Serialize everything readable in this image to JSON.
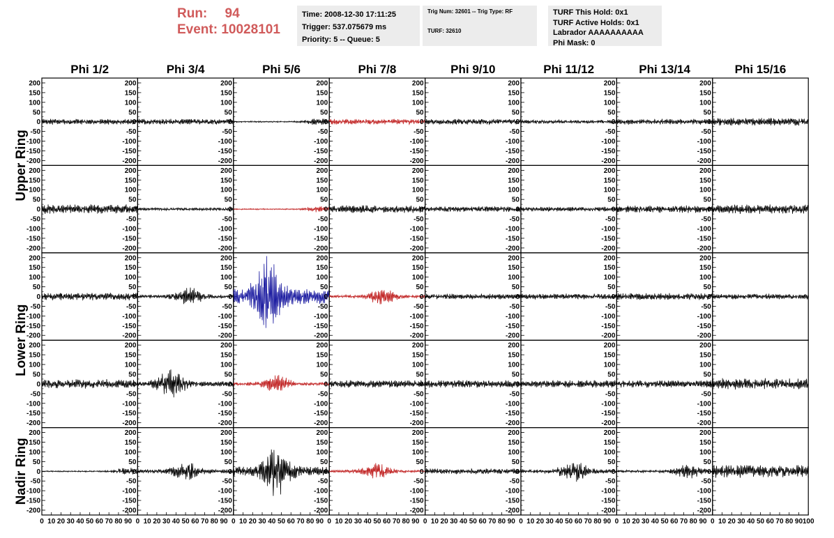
{
  "header": {
    "run_label": "Run:",
    "run_value": "94",
    "event_label": "Event:",
    "event_value": "10028101",
    "info1": [
      "Time: 2008-12-30 17:11:25",
      "Trigger: 537.075679 ms",
      "Priority: 5 -- Queue: 5"
    ],
    "info2": [
      "Trig Num: 32601 -- Trig Type: RF",
      "TURF: 32610"
    ],
    "info3": [
      "TURF This Hold: 0x1",
      "TURF Active Holds: 0x1",
      "Labrador AAAAAAAAAA",
      "Phi Mask: 0"
    ]
  },
  "colors": {
    "header_red": "#d05a5a",
    "info_bg": "#ececec",
    "trace_default": "#000000",
    "trace_red": "#c02020",
    "trace_blue": "#1a1aa0"
  },
  "chart_data": {
    "type": "line",
    "columns": [
      "Phi 1/2",
      "Phi 3/4",
      "Phi 5/6",
      "Phi 7/8",
      "Phi 9/10",
      "Phi 11/12",
      "Phi 13/14",
      "Phi 15/16"
    ],
    "ring_labels": [
      "Upper Ring",
      "Lower Ring",
      "Nadir Ring"
    ],
    "rows": 5,
    "row_ring_index": [
      0,
      0,
      1,
      1,
      2
    ],
    "xlim": [
      0,
      100
    ],
    "ylim": [
      -225,
      225
    ],
    "yticks": [
      -200,
      -150,
      -100,
      -50,
      0,
      50,
      100,
      150,
      200
    ],
    "xtick_labels": [
      "0",
      "10",
      "20",
      "30",
      "40",
      "50",
      "60",
      "70",
      "80",
      "90",
      "100"
    ],
    "panel_amplitude": [
      [
        15,
        15,
        20,
        15,
        15,
        10,
        15,
        20
      ],
      [
        25,
        8,
        18,
        20,
        15,
        12,
        20,
        25
      ],
      [
        20,
        50,
        220,
        45,
        15,
        15,
        18,
        15
      ],
      [
        25,
        80,
        50,
        20,
        20,
        20,
        20,
        30
      ],
      [
        20,
        60,
        140,
        45,
        15,
        60,
        40,
        35
      ]
    ],
    "panel_burst_center": [
      [
        null,
        null,
        90,
        null,
        null,
        null,
        null,
        null
      ],
      [
        null,
        null,
        90,
        null,
        null,
        null,
        null,
        null
      ],
      [
        null,
        55,
        35,
        55,
        null,
        null,
        null,
        null
      ],
      [
        null,
        35,
        45,
        null,
        null,
        null,
        null,
        null
      ],
      [
        90,
        50,
        45,
        50,
        null,
        55,
        75,
        null
      ]
    ],
    "panel_color": [
      [
        "trace_default",
        "trace_default",
        "trace_default",
        "trace_red",
        "trace_default",
        "trace_default",
        "trace_default",
        "trace_default"
      ],
      [
        "trace_default",
        "trace_default",
        "trace_red",
        "trace_default",
        "trace_default",
        "trace_default",
        "trace_default",
        "trace_default"
      ],
      [
        "trace_default",
        "trace_default",
        "trace_blue",
        "trace_red",
        "trace_default",
        "trace_default",
        "trace_default",
        "trace_default"
      ],
      [
        "trace_default",
        "trace_default",
        "trace_red",
        "trace_default",
        "trace_default",
        "trace_default",
        "trace_default",
        "trace_default"
      ],
      [
        "trace_default",
        "trace_default",
        "trace_default",
        "trace_red",
        "trace_default",
        "trace_default",
        "trace_default",
        "trace_default"
      ]
    ]
  }
}
